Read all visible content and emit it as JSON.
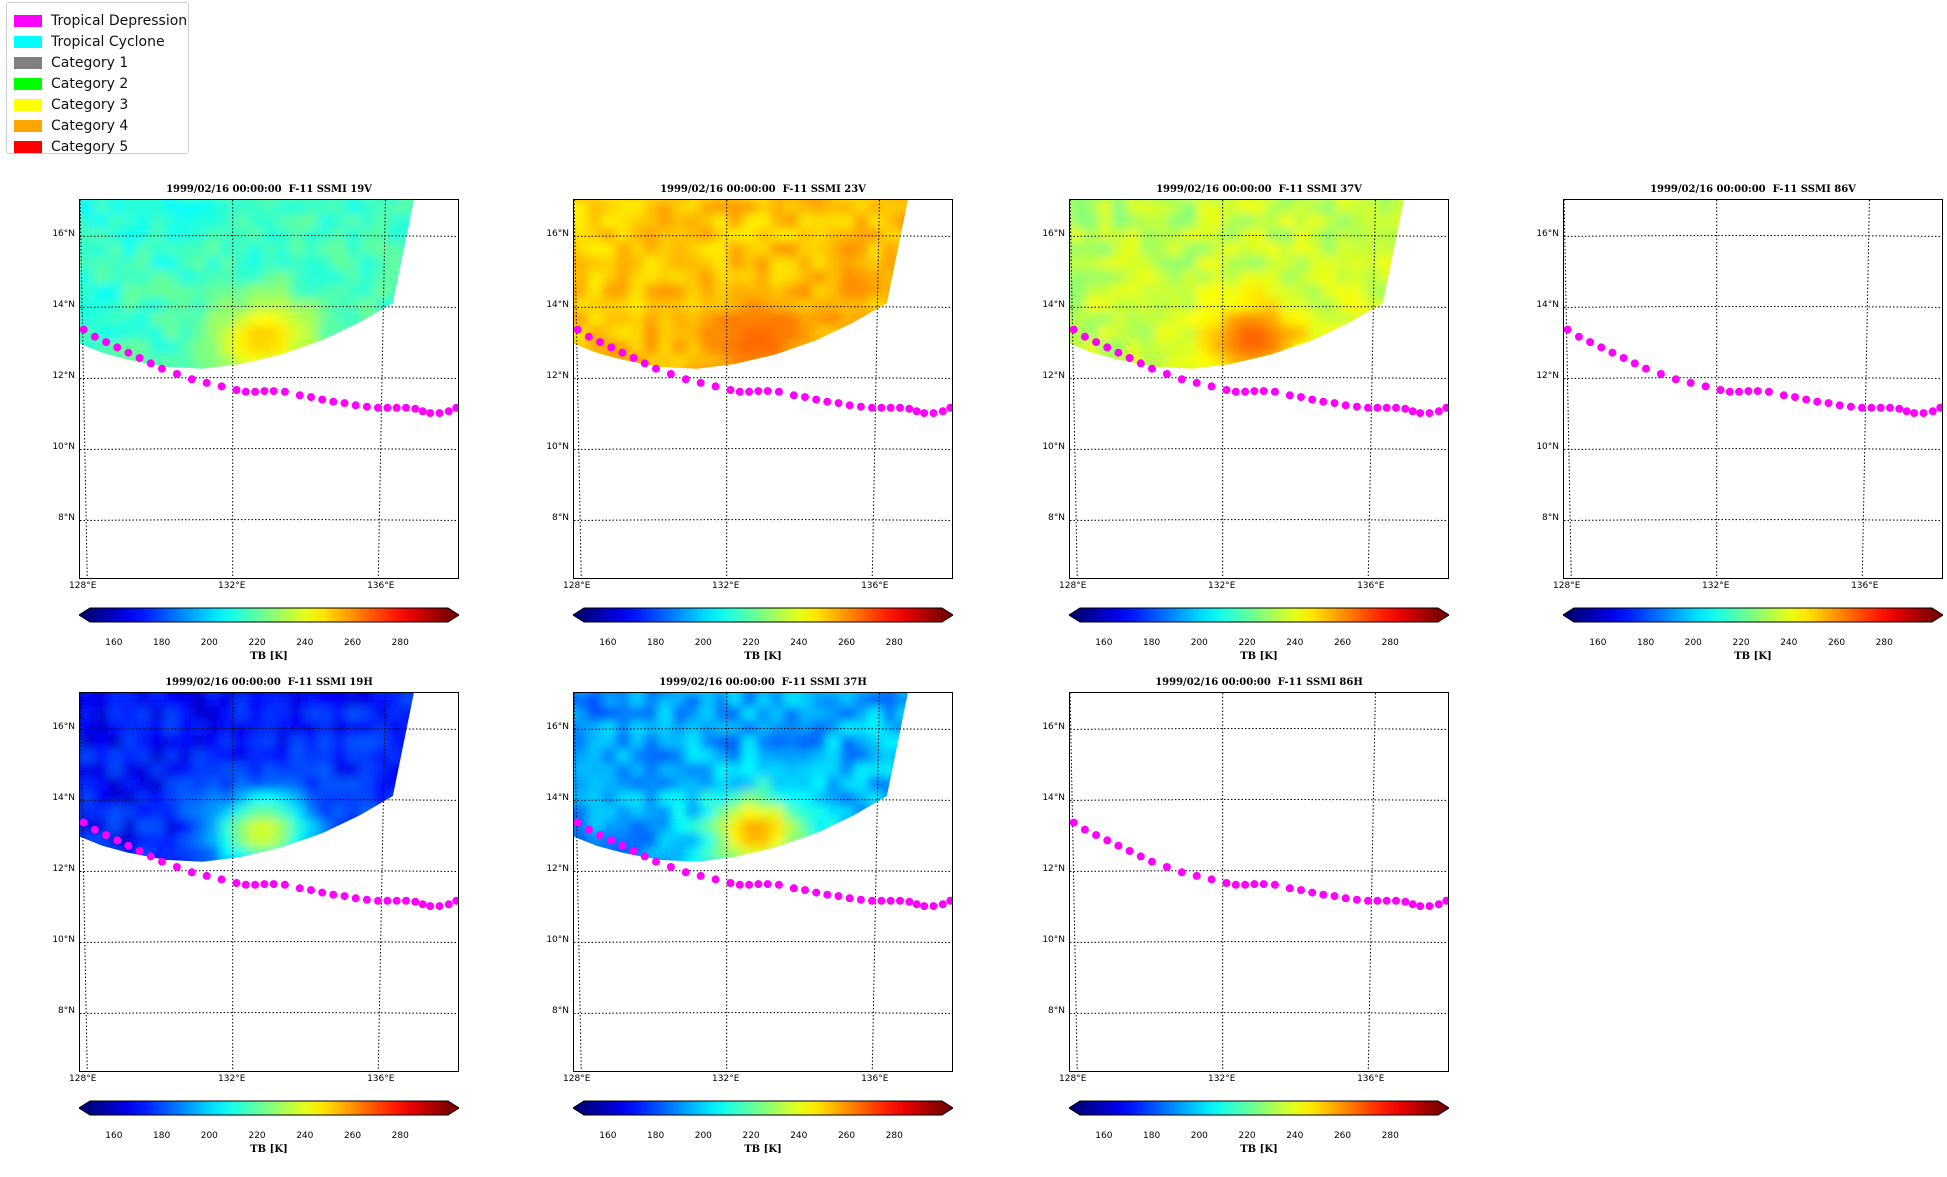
{
  "legend": {
    "items": [
      {
        "label": "Tropical Depression",
        "color": "#ff00ff"
      },
      {
        "label": "Tropical Cyclone",
        "color": "#00ffff"
      },
      {
        "label": "Category 1",
        "color": "#808080"
      },
      {
        "label": "Category 2",
        "color": "#00ff00"
      },
      {
        "label": "Category 3",
        "color": "#ffff00"
      },
      {
        "label": "Category 4",
        "color": "#ffa500"
      },
      {
        "label": "Category 5",
        "color": "#ff0000"
      }
    ]
  },
  "map_extent": {
    "lon": [
      128,
      136
    ],
    "lat": [
      8,
      16
    ],
    "lon_view": [
      127.9,
      138.1
    ],
    "lat_view": [
      6.3,
      17.0
    ]
  },
  "lat_ticks": [
    "8°N",
    "10°N",
    "12°N",
    "14°N",
    "16°N"
  ],
  "lon_ticks": [
    "128°E",
    "132°E",
    "136°E"
  ],
  "colorbar": {
    "ticks": [
      "160",
      "180",
      "200",
      "220",
      "240",
      "260",
      "280"
    ],
    "label": "TB [K]",
    "range": [
      150,
      300
    ],
    "colormap": "jet"
  },
  "track": {
    "color": "#ff00ff",
    "category": "Tropical Depression",
    "points": [
      [
        128.0,
        13.35
      ],
      [
        128.3,
        13.15
      ],
      [
        128.6,
        13.0
      ],
      [
        128.9,
        12.85
      ],
      [
        129.2,
        12.7
      ],
      [
        129.5,
        12.55
      ],
      [
        129.8,
        12.4
      ],
      [
        130.1,
        12.25
      ],
      [
        130.5,
        12.1
      ],
      [
        130.9,
        11.95
      ],
      [
        131.3,
        11.85
      ],
      [
        131.7,
        11.75
      ],
      [
        132.1,
        11.65
      ],
      [
        132.35,
        11.6
      ],
      [
        132.6,
        11.6
      ],
      [
        132.85,
        11.62
      ],
      [
        133.1,
        11.62
      ],
      [
        133.4,
        11.6
      ],
      [
        133.8,
        11.5
      ],
      [
        134.1,
        11.45
      ],
      [
        134.4,
        11.38
      ],
      [
        134.7,
        11.32
      ],
      [
        135.0,
        11.28
      ],
      [
        135.3,
        11.22
      ],
      [
        135.6,
        11.18
      ],
      [
        135.9,
        11.15
      ],
      [
        136.15,
        11.15
      ],
      [
        136.4,
        11.15
      ],
      [
        136.65,
        11.15
      ],
      [
        136.9,
        11.12
      ],
      [
        137.1,
        11.05
      ],
      [
        137.3,
        11.0
      ],
      [
        137.55,
        11.0
      ],
      [
        137.8,
        11.05
      ],
      [
        138.0,
        11.15
      ],
      [
        138.25,
        11.22
      ]
    ]
  },
  "panels": [
    {
      "title": "1999/02/16 00:00:00  F-11 SSMI 19V",
      "channel": "19V",
      "swath": true,
      "bg_tb": 212,
      "bg_var": 7,
      "eye_tb": 252
    },
    {
      "title": "1999/02/16 00:00:00  F-11 SSMI 23V",
      "channel": "23V",
      "swath": true,
      "bg_tb": 250,
      "bg_var": 7,
      "eye_tb": 266
    },
    {
      "title": "1999/02/16 00:00:00  F-11 SSMI 37V",
      "channel": "37V",
      "swath": true,
      "bg_tb": 232,
      "bg_var": 8,
      "eye_tb": 268
    },
    {
      "title": "1999/02/16 00:00:00  F-11 SSMI 86V",
      "channel": "86V",
      "swath": false
    },
    {
      "title": "1999/02/16 00:00:00  F-11 SSMI 19H",
      "channel": "19H",
      "swath": true,
      "bg_tb": 168,
      "bg_var": 10,
      "eye_tb": 240
    },
    {
      "title": "1999/02/16 00:00:00  F-11 SSMI 37H",
      "channel": "37H",
      "swath": true,
      "bg_tb": 190,
      "bg_var": 12,
      "eye_tb": 258
    },
    {
      "title": "1999/02/16 00:00:00  F-11 SSMI 86H",
      "channel": "86H",
      "swath": false
    }
  ]
}
